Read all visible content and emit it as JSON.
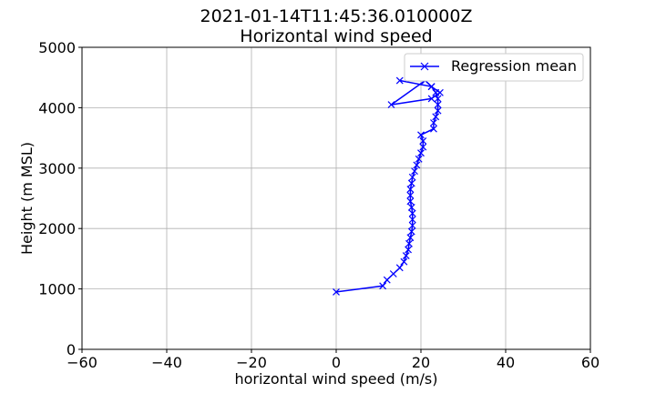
{
  "chart_data": {
    "type": "line",
    "title": "2021-01-14T11:45:36.010000Z",
    "subtitle": "Horizontal wind speed",
    "xlabel": "horizontal wind speed (m/s)",
    "ylabel": "Height (m MSL)",
    "xlim": [
      -60,
      60
    ],
    "ylim": [
      0,
      5000
    ],
    "xticks": [
      -60,
      -40,
      -20,
      0,
      20,
      40,
      60
    ],
    "yticks": [
      0,
      1000,
      2000,
      3000,
      4000,
      5000
    ],
    "xtick_labels": [
      "−60",
      "−40",
      "−20",
      "0",
      "20",
      "40",
      "60"
    ],
    "ytick_labels": [
      "0",
      "1000",
      "2000",
      "3000",
      "4000",
      "5000"
    ],
    "grid": true,
    "legend_position": "top-right",
    "series": [
      {
        "name": "Regression mean",
        "color": "#0000ff",
        "marker": "x",
        "x": [
          0,
          11,
          12,
          13.5,
          15,
          16,
          16.5,
          17,
          17.2,
          17.5,
          17.8,
          18,
          18,
          18,
          17.8,
          17.5,
          17.5,
          17.5,
          17.8,
          18,
          18.5,
          19,
          19.5,
          20,
          20.5,
          20.5,
          20,
          23,
          23,
          23.5,
          24,
          24,
          24,
          23.5,
          22.5,
          21,
          13,
          22.5,
          24.5,
          22.5,
          15
        ],
        "y": [
          950,
          1050,
          1150,
          1250,
          1350,
          1450,
          1550,
          1650,
          1750,
          1850,
          1950,
          2050,
          2150,
          2250,
          2350,
          2450,
          2550,
          2650,
          2750,
          2850,
          2950,
          3050,
          3150,
          3250,
          3350,
          3450,
          3550,
          3650,
          3750,
          3850,
          3950,
          4050,
          4150,
          4250,
          4350,
          4450,
          4050,
          4150,
          4250,
          4350,
          4450
        ]
      }
    ]
  }
}
